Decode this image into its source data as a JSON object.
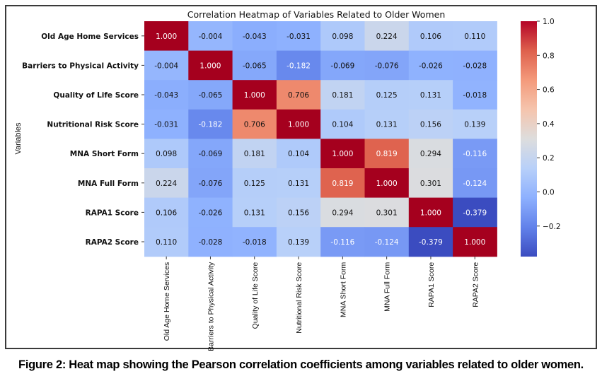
{
  "chart_data": {
    "type": "heatmap",
    "title": "Correlation Heatmap of Variables Related to Older Women",
    "ylabel": "Variables",
    "xlabel": "",
    "variables": [
      "Old Age Home Services",
      "Barriers to Physical Activity",
      "Quality of Life Score",
      "Nutritional Risk Score",
      "MNA Short Form",
      "MNA Full Form",
      "RAPA1 Score",
      "RAPA2 Score"
    ],
    "matrix": [
      [
        1.0,
        -0.004,
        -0.043,
        -0.031,
        0.098,
        0.224,
        0.106,
        0.11
      ],
      [
        -0.004,
        1.0,
        -0.065,
        -0.182,
        -0.069,
        -0.076,
        -0.026,
        -0.028
      ],
      [
        -0.043,
        -0.065,
        1.0,
        0.706,
        0.181,
        0.125,
        0.131,
        -0.018
      ],
      [
        -0.031,
        -0.182,
        0.706,
        1.0,
        0.104,
        0.131,
        0.156,
        0.139
      ],
      [
        0.098,
        -0.069,
        0.181,
        0.104,
        1.0,
        0.819,
        0.294,
        -0.116
      ],
      [
        0.224,
        -0.076,
        0.125,
        0.131,
        0.819,
        1.0,
        0.301,
        -0.124
      ],
      [
        0.106,
        -0.026,
        0.131,
        0.156,
        0.294,
        0.301,
        1.0,
        -0.379
      ],
      [
        0.11,
        -0.028,
        -0.018,
        0.139,
        -0.116,
        -0.124,
        -0.379,
        1.0
      ]
    ],
    "value_format": "3 decimals",
    "colormap": "coolwarm",
    "color_range": [
      -0.379,
      1.0
    ],
    "colorbar": {
      "ticks": [
        1.0,
        0.8,
        0.6,
        0.4,
        0.2,
        0.0,
        -0.2
      ],
      "tick_labels": [
        "1.0",
        "0.8",
        "0.6",
        "0.4",
        "0.2",
        "0.0",
        "−0.2"
      ],
      "placement": "right"
    },
    "grid": false
  },
  "caption": "Figure 2: Heat map showing the Pearson correlation coefficients among variables related to older women."
}
